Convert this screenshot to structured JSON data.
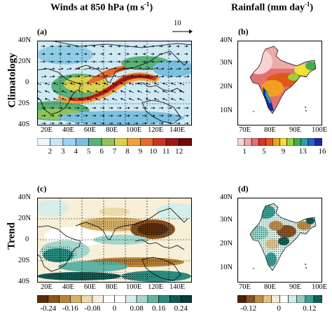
{
  "titles": {
    "left_prefix": "Winds at 850 hPa (m s",
    "left_exp": "-1",
    "left_suffix": ")",
    "right_prefix": "Rainfall (mm day",
    "right_exp": "-1",
    "right_suffix": ")"
  },
  "rows": {
    "top": "Climatology",
    "bottom": "Trend"
  },
  "panels": {
    "a": "(a)",
    "b": "(b)",
    "c": "(c)",
    "d": "(d)"
  },
  "ref_vector": "10",
  "axes": {
    "left_lat": [
      "40N",
      "20N",
      "0",
      "20S",
      "40S"
    ],
    "left_lon": [
      "20E",
      "40E",
      "60E",
      "80E",
      "100E",
      "120E",
      "140E"
    ],
    "right_lat": [
      "40N",
      "30N",
      "20N",
      "10N"
    ],
    "right_lon": [
      "70E",
      "80E",
      "90E",
      "100E"
    ]
  },
  "colorbars": {
    "wind_clim": {
      "labels": [
        "2",
        "3",
        "4",
        "5",
        "6",
        "7",
        "8",
        "9",
        "10",
        "11",
        "12"
      ],
      "colors": [
        "#eef7fb",
        "#c9e6f3",
        "#9fd1ea",
        "#7cc0e0",
        "#59b27a",
        "#8fc45a",
        "#d9d24a",
        "#f1a13a",
        "#e86a2a",
        "#cc3322",
        "#a01616",
        "#6e0a0a"
      ]
    },
    "rain_clim": {
      "labels": [
        "1",
        "5",
        "9",
        "13",
        "16"
      ],
      "colors": [
        "#f7d3d3",
        "#eea9a9",
        "#e37070",
        "#db3030",
        "#e0591a",
        "#f0a020",
        "#f3e030",
        "#9bd040",
        "#3fae4a",
        "#2aa0a8",
        "#2b5fd0",
        "#1b2a9a"
      ]
    },
    "wind_trend": {
      "labels": [
        "-0.24",
        "-0.16",
        "-0.08",
        "0",
        "0.08",
        "0.16",
        "0.24"
      ],
      "colors": [
        "#5a2e0c",
        "#8c5420",
        "#b98438",
        "#d8b26a",
        "#ecd8a8",
        "#f8efd8",
        "#ffffff",
        "#ffffff",
        "#d7ede9",
        "#a3d6cc",
        "#5fb3a4",
        "#2a8a80",
        "#0d5a55",
        "#063c3a"
      ]
    },
    "rain_trend": {
      "labels": [
        "-0.12",
        "0",
        "0.12"
      ],
      "colors": [
        "#4a2208",
        "#8a5020",
        "#c08a48",
        "#e2c28a",
        "#f6ead0",
        "#ffffff",
        "#d2ebe6",
        "#8fcbc0",
        "#3e9c92",
        "#0e5e58"
      ]
    }
  },
  "colors": {
    "land_outline": "#000000",
    "ocean_clim": "#ffffff"
  }
}
